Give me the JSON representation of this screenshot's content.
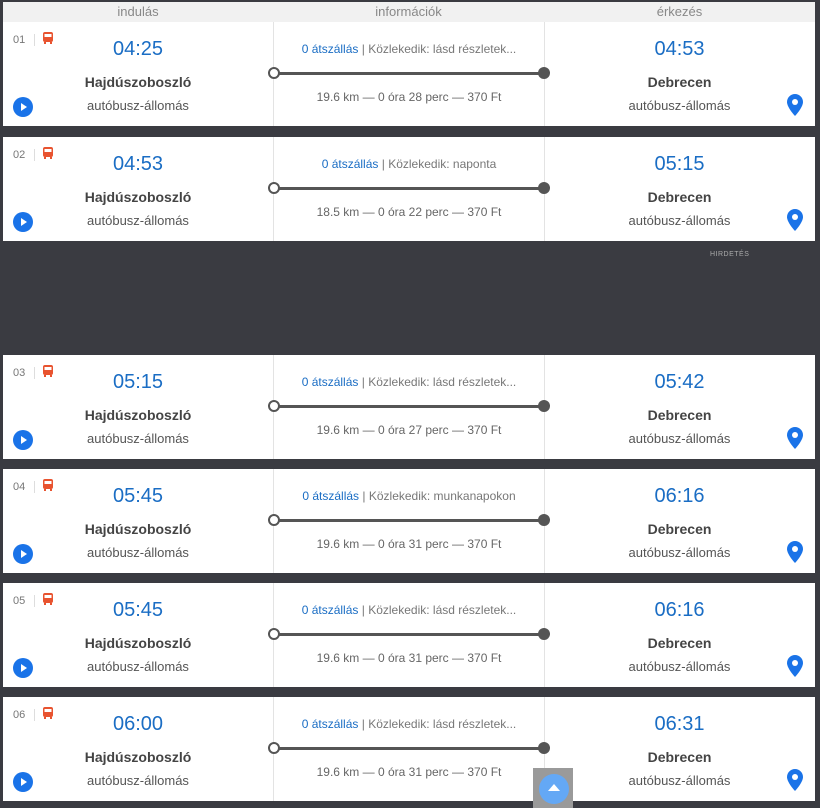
{
  "header": {
    "departure": "indulás",
    "info": "információk",
    "arrival": "érkezés"
  },
  "ad_label": "HIRDETÉS",
  "colors": {
    "accent": "#1a6dc4",
    "bus_icon": "#e8532f",
    "background": "#3a3b41"
  },
  "rows": [
    {
      "num": "01",
      "dep": "04:25",
      "from": "Hajdúszoboszló",
      "from_stop": "autóbusz-állomás",
      "transfers": "0 átszállás",
      "schedule": "| Közlekedik: lásd részletek...",
      "details": "19.6 km — 0 óra 28 perc — 370 Ft",
      "arr": "04:53",
      "to": "Debrecen",
      "to_stop": "autóbusz-állomás"
    },
    {
      "num": "02",
      "dep": "04:53",
      "from": "Hajdúszoboszló",
      "from_stop": "autóbusz-állomás",
      "transfers": "0 átszállás",
      "schedule": "| Közlekedik: naponta",
      "details": "18.5 km — 0 óra 22 perc — 370 Ft",
      "arr": "05:15",
      "to": "Debrecen",
      "to_stop": "autóbusz-állomás"
    },
    {
      "num": "03",
      "dep": "05:15",
      "from": "Hajdúszoboszló",
      "from_stop": "autóbusz-állomás",
      "transfers": "0 átszállás",
      "schedule": "| Közlekedik: lásd részletek...",
      "details": "19.6 km — 0 óra 27 perc — 370 Ft",
      "arr": "05:42",
      "to": "Debrecen",
      "to_stop": "autóbusz-állomás"
    },
    {
      "num": "04",
      "dep": "05:45",
      "from": "Hajdúszoboszló",
      "from_stop": "autóbusz-állomás",
      "transfers": "0 átszállás",
      "schedule": "| Közlekedik: munkanapokon",
      "details": "19.6 km — 0 óra 31 perc — 370 Ft",
      "arr": "06:16",
      "to": "Debrecen",
      "to_stop": "autóbusz-állomás"
    },
    {
      "num": "05",
      "dep": "05:45",
      "from": "Hajdúszoboszló",
      "from_stop": "autóbusz-állomás",
      "transfers": "0 átszállás",
      "schedule": "| Közlekedik: lásd részletek...",
      "details": "19.6 km — 0 óra 31 perc — 370 Ft",
      "arr": "06:16",
      "to": "Debrecen",
      "to_stop": "autóbusz-állomás"
    },
    {
      "num": "06",
      "dep": "06:00",
      "from": "Hajdúszoboszló",
      "from_stop": "autóbusz-állomás",
      "transfers": "0 átszállás",
      "schedule": "| Közlekedik: lásd részletek...",
      "details": "19.6 km — 0 óra 31 perc — 370 Ft",
      "arr": "06:31",
      "to": "Debrecen",
      "to_stop": "autóbusz-állomás"
    }
  ]
}
